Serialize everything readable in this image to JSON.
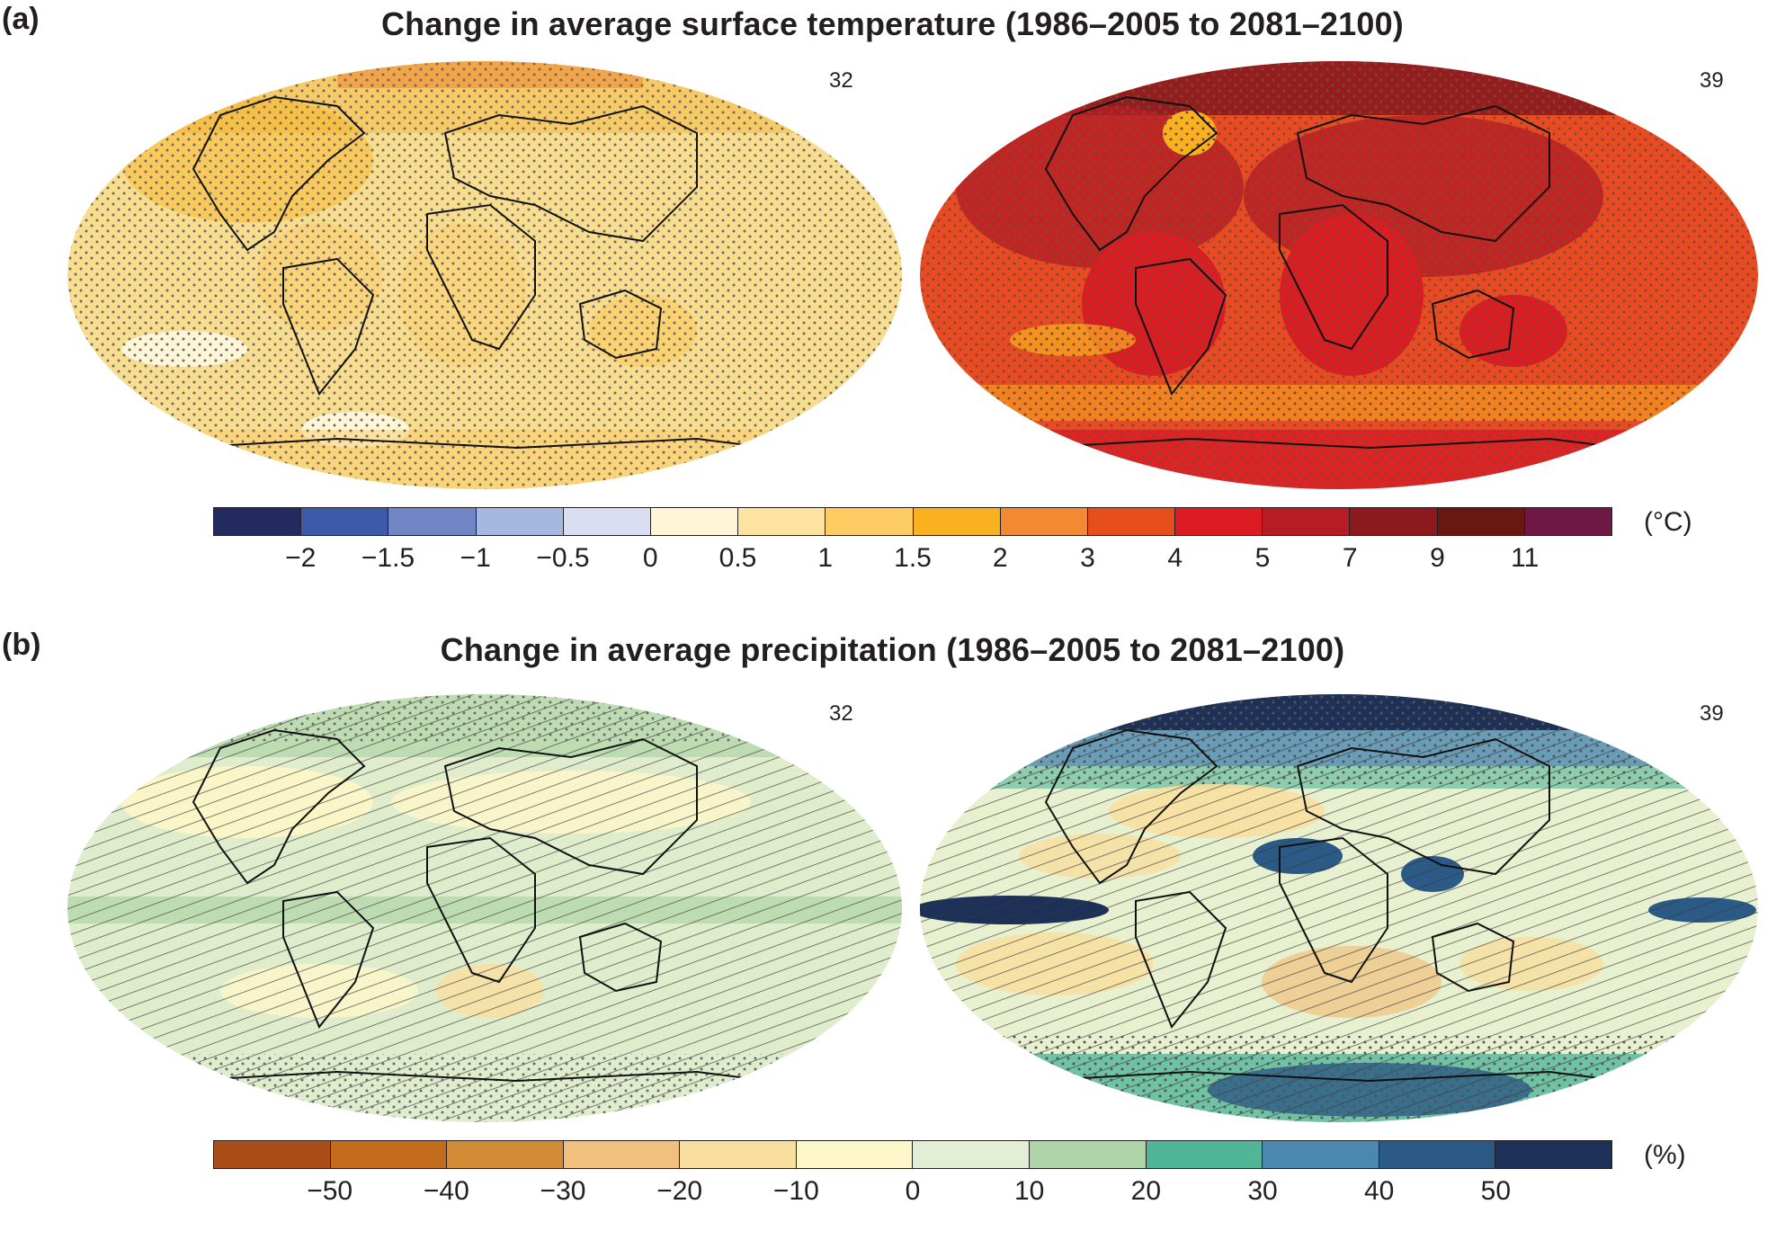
{
  "panel_a": {
    "letter": "(a)",
    "title": "Change in average surface temperature (1986–2005 to 2081–2100)",
    "left_map": {
      "model_count": "32",
      "fill": "#f9dd8e",
      "pattern": "dots"
    },
    "right_map": {
      "model_count": "39",
      "fill": "#e84b22",
      "pattern": "dots"
    },
    "unit": "(°C)",
    "colors": [
      "#232b5e",
      "#3c5aa8",
      "#7186c4",
      "#a5b8e0",
      "#d9def2",
      "#fef6d7",
      "#fde3a0",
      "#fdcc63",
      "#f9b11f",
      "#f18a33",
      "#e64f1d",
      "#db1c23",
      "#b71b24",
      "#8b191d",
      "#6b1711",
      "#6f1846"
    ],
    "ticks": [
      "−2",
      "−1.5",
      "−1",
      "−0.5",
      "0",
      "0.5",
      "1",
      "1.5",
      "2",
      "3",
      "4",
      "5",
      "7",
      "9",
      "11"
    ]
  },
  "panel_b": {
    "letter": "(b)",
    "title": "Change in average precipitation (1986–2005 to 2081–2100)",
    "left_map": {
      "model_count": "32",
      "fill": "#dfedcd",
      "pattern": "hatch"
    },
    "right_map": {
      "model_count": "39",
      "fill": "#e7f0cf",
      "pattern": "hatch"
    },
    "unit": "(%)",
    "colors": [
      "#a94e17",
      "#c26b1d",
      "#d28a36",
      "#f1c07d",
      "#f9df9f",
      "#fdf6c8",
      "#e2efd4",
      "#afd4a7",
      "#51b698",
      "#4a88b0",
      "#2b5a86",
      "#1d3058"
    ],
    "ticks": [
      "−50",
      "−40",
      "−30",
      "−20",
      "−10",
      "0",
      "10",
      "20",
      "30",
      "40",
      "50"
    ]
  }
}
